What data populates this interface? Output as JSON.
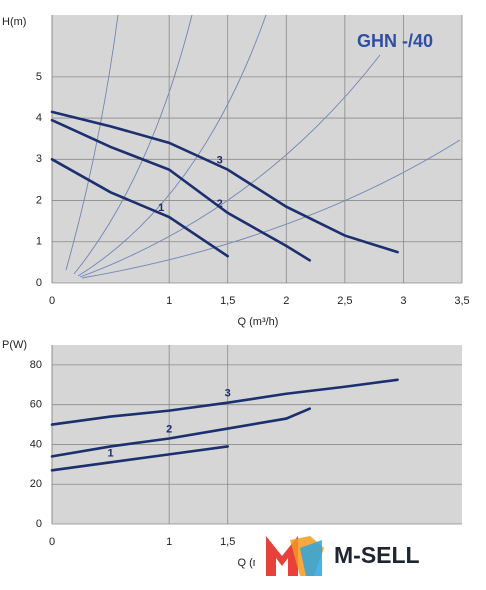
{
  "chart_data": [
    {
      "type": "line",
      "title": "GHN -/40",
      "y_label": "H(m)",
      "x_label": "Q (m³/h)",
      "xlim": [
        0,
        3.5
      ],
      "xticks": [
        0,
        {
          "value": 1,
          "label": "1"
        },
        {
          "value": 1.5,
          "label": "1,5"
        },
        2,
        {
          "value": 2.5,
          "label": "2,5"
        },
        3,
        {
          "value": 3.5,
          "label": "3,5"
        }
      ],
      "ylim": [
        0,
        6.5
      ],
      "yticks": [
        0,
        1,
        2,
        3,
        4,
        5
      ],
      "grid": true,
      "series": [
        {
          "name": "1",
          "color": "#1c2f6e",
          "x": [
            0,
            0.5,
            1,
            1.5
          ],
          "values": [
            3,
            2.2,
            1.6,
            0.65
          ]
        },
        {
          "name": "2",
          "color": "#1c2f6e",
          "x": [
            0,
            0.5,
            1,
            1.5,
            2,
            2.2
          ],
          "values": [
            3.95,
            3.3,
            2.75,
            1.7,
            0.9,
            0.55
          ]
        },
        {
          "name": "3",
          "color": "#1c2f6e",
          "x": [
            0,
            0.5,
            1,
            1.5,
            2,
            2.5,
            2.95
          ],
          "values": [
            4.15,
            3.8,
            3.4,
            2.75,
            1.85,
            1.15,
            0.75
          ]
        }
      ]
    },
    {
      "type": "line",
      "y_label": "P(W)",
      "x_label": "Q (m³/h)",
      "xlim": [
        0,
        3.5
      ],
      "xticks": [
        0,
        {
          "value": 1,
          "label": "1"
        },
        {
          "value": 1.5,
          "label": "1,5"
        }
      ],
      "ylim": [
        0,
        90
      ],
      "yticks": [
        0,
        20,
        40,
        60,
        80
      ],
      "grid": true,
      "series": [
        {
          "name": "1",
          "color": "#1c2f6e",
          "x": [
            0,
            0.5,
            1,
            1.5
          ],
          "values": [
            27,
            31,
            35,
            39
          ]
        },
        {
          "name": "2",
          "color": "#1c2f6e",
          "x": [
            0,
            0.5,
            1,
            1.5,
            2,
            2.2
          ],
          "values": [
            34,
            39,
            43,
            48,
            53,
            58
          ]
        },
        {
          "name": "3",
          "color": "#1c2f6e",
          "x": [
            0,
            0.5,
            1,
            1.5,
            2,
            2.5,
            2.95
          ],
          "values": [
            50,
            54,
            57,
            61,
            65.5,
            69,
            72.5
          ]
        }
      ]
    }
  ],
  "watermark": "M-SELL"
}
